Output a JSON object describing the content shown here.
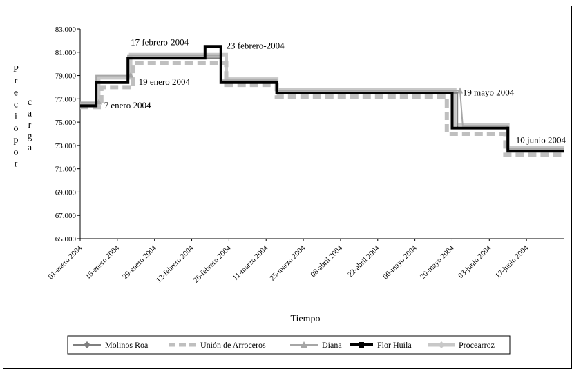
{
  "chart_data": {
    "type": "line",
    "title": "",
    "xlabel": "Tiempo",
    "ylabel": "Precio por carga",
    "ylim": [
      65000,
      83000
    ],
    "y_ticks": [
      "65.000",
      "67.000",
      "69.000",
      "71.000",
      "73.000",
      "75.000",
      "77.000",
      "79.000",
      "81.000",
      "83.000"
    ],
    "x_ticks": [
      "01-enero 2004",
      "15-enero 2004",
      "29-enero 2004",
      "12-febrero 2004",
      "26-febrero 2004",
      "11-marzo 2004",
      "25-marzo 2004",
      "08-abril 2004",
      "22-abril 2004",
      "06-mayo 2004",
      "20-mayo 2004",
      "03-junio 2004",
      "17-junio 2004"
    ],
    "x_tick_dates": [
      "2004-01-01",
      "2004-01-15",
      "2004-01-29",
      "2004-02-12",
      "2004-02-26",
      "2004-03-11",
      "2004-03-25",
      "2004-04-08",
      "2004-04-22",
      "2004-05-06",
      "2004-05-20",
      "2004-06-03",
      "2004-06-17"
    ],
    "xlim": [
      "2004-01-01",
      "2004-07-01"
    ],
    "legend_position": "bottom",
    "grid": false,
    "series": [
      {
        "name": "Molinos Roa",
        "color": "#7f7f7f",
        "style": "thin-diamond",
        "points": [
          [
            "2004-01-01",
            76500
          ],
          [
            "2004-01-07",
            76500
          ],
          [
            "2004-01-07",
            78500
          ],
          [
            "2004-01-19",
            78500
          ],
          [
            "2004-01-19",
            80500
          ],
          [
            "2004-02-23",
            80500
          ],
          [
            "2004-02-23",
            78500
          ],
          [
            "2004-03-15",
            78500
          ],
          [
            "2004-03-15",
            77500
          ],
          [
            "2004-05-22",
            77500
          ],
          [
            "2004-05-22",
            74500
          ],
          [
            "2004-06-10",
            74500
          ],
          [
            "2004-06-10",
            72500
          ],
          [
            "2004-07-01",
            72500
          ]
        ]
      },
      {
        "name": "Unión de Arroceros",
        "color": "#bfbfbf",
        "style": "thick-dashed",
        "points": [
          [
            "2004-01-01",
            76300
          ],
          [
            "2004-01-09",
            76300
          ],
          [
            "2004-01-09",
            78000
          ],
          [
            "2004-01-21",
            78000
          ],
          [
            "2004-01-21",
            80100
          ],
          [
            "2004-02-25",
            80100
          ],
          [
            "2004-02-25",
            78200
          ],
          [
            "2004-03-15",
            78200
          ],
          [
            "2004-03-15",
            77200
          ],
          [
            "2004-05-18",
            77200
          ],
          [
            "2004-05-18",
            74000
          ],
          [
            "2004-06-09",
            74000
          ],
          [
            "2004-06-09",
            72200
          ],
          [
            "2004-07-01",
            72200
          ]
        ]
      },
      {
        "name": "Diana",
        "color": "#a6a6a6",
        "style": "thin-triangle",
        "points": [
          [
            "2004-01-01",
            76700
          ],
          [
            "2004-01-07",
            76700
          ],
          [
            "2004-01-07",
            79000
          ],
          [
            "2004-01-19",
            79000
          ],
          [
            "2004-01-19",
            80700
          ],
          [
            "2004-02-23",
            80700
          ],
          [
            "2004-02-23",
            78600
          ],
          [
            "2004-03-15",
            78600
          ],
          [
            "2004-03-15",
            77700
          ],
          [
            "2004-05-22",
            77700
          ],
          [
            "2004-05-23",
            77700
          ],
          [
            "2004-05-24",
            74700
          ],
          [
            "2004-06-10",
            74700
          ],
          [
            "2004-06-10",
            72700
          ],
          [
            "2004-07-01",
            72700
          ]
        ]
      },
      {
        "name": "Flor Huila",
        "color": "#000000",
        "style": "thick-solid",
        "points": [
          [
            "2004-01-01",
            76400
          ],
          [
            "2004-01-07",
            76400
          ],
          [
            "2004-01-07",
            78400
          ],
          [
            "2004-01-19",
            78400
          ],
          [
            "2004-01-19",
            80500
          ],
          [
            "2004-02-17",
            80500
          ],
          [
            "2004-02-17",
            81500
          ],
          [
            "2004-02-23",
            81500
          ],
          [
            "2004-02-23",
            78400
          ],
          [
            "2004-03-15",
            78400
          ],
          [
            "2004-03-15",
            77500
          ],
          [
            "2004-05-20",
            77500
          ],
          [
            "2004-05-20",
            74500
          ],
          [
            "2004-06-10",
            74500
          ],
          [
            "2004-06-10",
            72500
          ],
          [
            "2004-07-01",
            72500
          ]
        ]
      },
      {
        "name": "Procearroz",
        "color": "#c8c8c8",
        "style": "thick-solid-diamond",
        "points": [
          [
            "2004-01-01",
            76600
          ],
          [
            "2004-01-08",
            76600
          ],
          [
            "2004-01-08",
            78800
          ],
          [
            "2004-01-20",
            78800
          ],
          [
            "2004-01-20",
            80800
          ],
          [
            "2004-02-25",
            80800
          ],
          [
            "2004-02-25",
            78700
          ],
          [
            "2004-03-15",
            78700
          ],
          [
            "2004-03-15",
            77800
          ],
          [
            "2004-05-21",
            77800
          ],
          [
            "2004-05-21",
            74800
          ],
          [
            "2004-06-10",
            74800
          ],
          [
            "2004-06-10",
            72800
          ],
          [
            "2004-07-01",
            72800
          ]
        ]
      }
    ],
    "annotations": [
      {
        "text": "7 enero 2004",
        "date": "2004-01-10",
        "value": 76200
      },
      {
        "text": "19 enero 2004",
        "date": "2004-01-23",
        "value": 78200
      },
      {
        "text": "17 febrero-2004",
        "date": "2004-01-20",
        "value": 81600
      },
      {
        "text": "23 febrero-2004",
        "date": "2004-02-25",
        "value": 81300
      },
      {
        "text": "19 mayo 2004",
        "date": "2004-05-24",
        "value": 77300
      },
      {
        "text": "10 junio 2004",
        "date": "2004-06-13",
        "value": 73200
      }
    ]
  }
}
